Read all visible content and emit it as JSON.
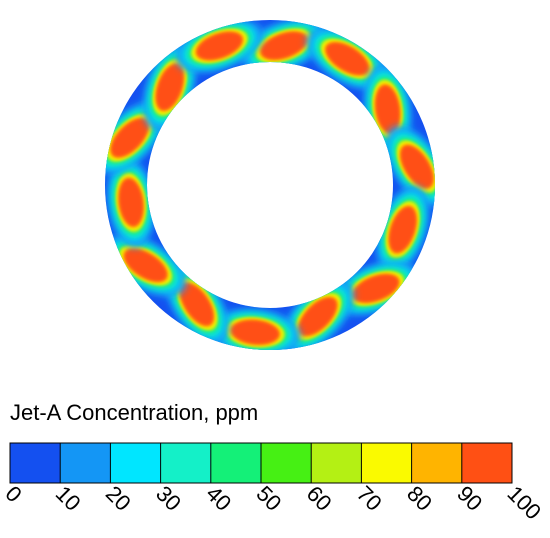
{
  "chart_data": {
    "type": "contour",
    "title": "Jet-A Concentration, ppm",
    "colorbar": {
      "lim": [
        0,
        100
      ],
      "ticks": [
        0,
        10,
        20,
        30,
        40,
        50,
        60,
        70,
        80,
        90,
        100
      ],
      "colors": [
        "#1450f0",
        "#1496f5",
        "#00e6ff",
        "#14f0c8",
        "#14f078",
        "#46f014",
        "#b4f014",
        "#fafa00",
        "#ffb400",
        "#ff5014"
      ]
    }
  }
}
